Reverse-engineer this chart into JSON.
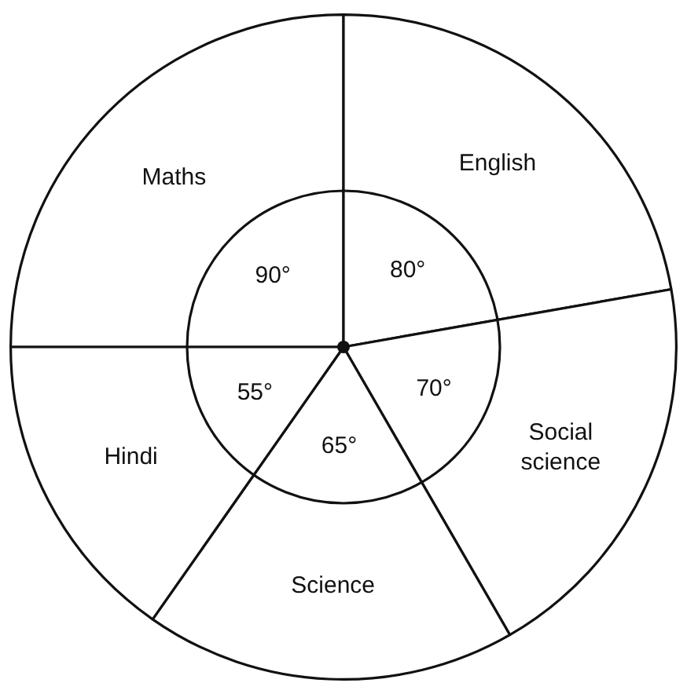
{
  "chart_data": {
    "type": "pie",
    "categories": [
      "Maths",
      "English",
      "Social science",
      "Science",
      "Hindi"
    ],
    "values": [
      90,
      80,
      70,
      65,
      55
    ],
    "value_labels": [
      "90°",
      "80°",
      "70°",
      "65°",
      "55°"
    ],
    "colors": [
      "#ffffff",
      "#ffffff",
      "#ffffff",
      "#ffffff",
      "#ffffff"
    ],
    "legend": false
  }
}
